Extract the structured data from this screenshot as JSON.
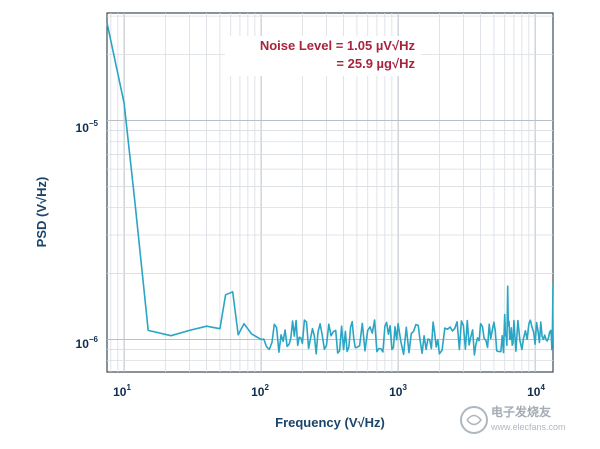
{
  "chart_data": {
    "type": "line",
    "x_scale": "log",
    "y_scale": "log",
    "xlim": [
      7.5,
      13500
    ],
    "ylim": [
      7.1e-07,
      3.1e-05
    ],
    "x_ticks": [
      {
        "value": 10,
        "base": "10",
        "exp": "1"
      },
      {
        "value": 100,
        "base": "10",
        "exp": "2"
      },
      {
        "value": 1000,
        "base": "10",
        "exp": "3"
      },
      {
        "value": 10000,
        "base": "10",
        "exp": "4"
      }
    ],
    "y_ticks": [
      {
        "value": 1e-06,
        "base": "10",
        "exp": "−6"
      },
      {
        "value": 1e-05,
        "base": "10",
        "exp": "−5"
      }
    ],
    "xlabel": "Frequency (V√Hz)",
    "ylabel": "PSD (V√Hz)",
    "annotation_line1": "Noise Level = 1.05 µV√Hz",
    "annotation_line2": "= 25.9 µg√Hz",
    "line_color": "#2aa5c4",
    "series": [
      {
        "name": "PSD",
        "x": [
          7.5,
          10,
          12,
          15,
          22,
          30,
          40,
          50,
          55,
          62,
          68,
          75,
          85,
          100,
          120,
          140,
          160,
          180,
          200,
          230,
          260,
          300,
          350,
          400,
          450,
          500,
          600,
          700,
          800,
          900,
          1000,
          1200,
          1400,
          1600,
          1800,
          2000,
          2400,
          2800,
          3200,
          3600,
          4000,
          4500,
          5000,
          5500,
          6000,
          6300,
          6600,
          7000,
          8000,
          9000,
          10000,
          11000,
          12000,
          13000,
          13500
        ],
        "y": [
          2.8e-05,
          1.2e-05,
          4.2e-06,
          1.1e-06,
          1.04e-06,
          1.1e-06,
          1.15e-06,
          1.12e-06,
          1.6e-06,
          1.65e-06,
          1.05e-06,
          1.18e-06,
          1.06e-06,
          1e-06,
          9.7e-07,
          1.05e-06,
          9.5e-07,
          1.22e-06,
          9.6e-07,
          1.02e-06,
          1.08e-06,
          9.4e-07,
          1.1e-06,
          9e-07,
          1.14e-06,
          9.2e-07,
          1.1e-06,
          8.8e-07,
          1.15e-06,
          9e-07,
          1.18e-06,
          8.7e-07,
          1.16e-06,
          9e-07,
          1.2e-06,
          8.6e-07,
          1.14e-06,
          9e-07,
          1.22e-06,
          8.5e-07,
          1.18e-06,
          9.2e-07,
          1.2e-06,
          8.8e-07,
          1.3e-06,
          1.75e-06,
          1e-06,
          1.22e-06,
          9e-07,
          1.18e-06,
          9.5e-07,
          1.2e-06,
          1e-06,
          1.1e-06,
          1.8e-06
        ]
      }
    ]
  },
  "watermark": "电子发烧友",
  "watermark_url": "www.elecfans.com"
}
